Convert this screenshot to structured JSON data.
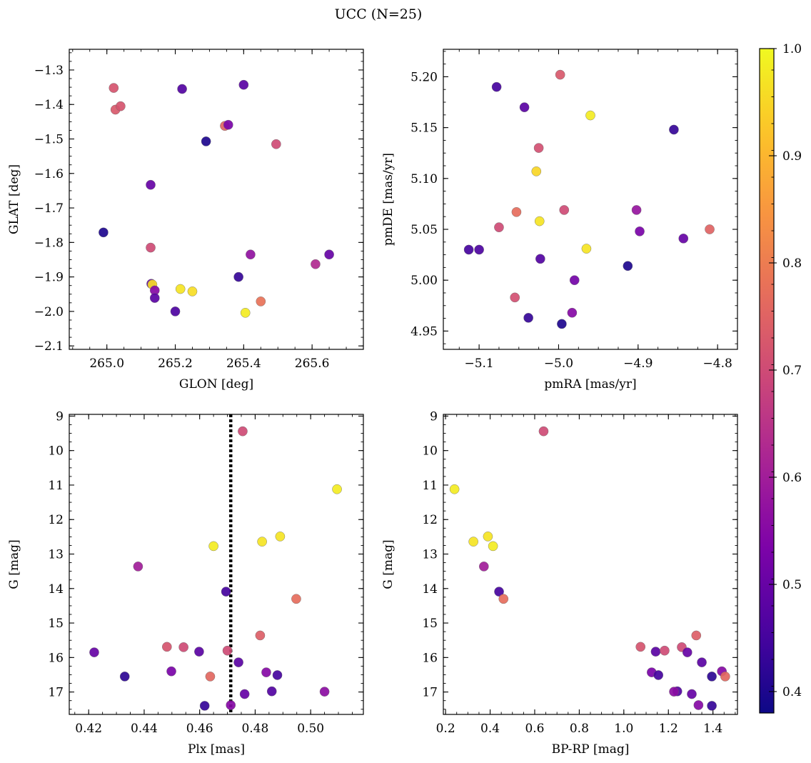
{
  "figure": {
    "title": "UCC (N=25)"
  },
  "colorbar": {
    "range": [
      0.38,
      1.0
    ],
    "ticks": [
      0.4,
      0.5,
      0.6,
      0.7,
      0.8,
      0.9,
      1.0
    ],
    "tick_labels": [
      "0.4",
      "0.5",
      "0.6",
      "0.7",
      "0.8",
      "0.9",
      "1.0"
    ],
    "colormap": "plasma"
  },
  "chart_data": [
    {
      "type": "scatter",
      "xlabel": "GLON [deg]",
      "ylabel": "GLAT [deg]",
      "xlim": [
        264.89,
        265.75
      ],
      "ylim": [
        -2.11,
        -1.24
      ],
      "xticks": [
        265.0,
        265.2,
        265.4,
        265.6
      ],
      "xtick_labels": [
        "265.0",
        "265.2",
        "265.4",
        "265.6"
      ],
      "yticks": [
        -1.3,
        -1.4,
        -1.5,
        -1.6,
        -1.7,
        -1.8,
        -1.9,
        -2.0,
        -2.1
      ],
      "ytick_labels": [
        "−1.3",
        "−1.4",
        "−1.5",
        "−1.6",
        "−1.7",
        "−1.8",
        "−1.9",
        "−2.0",
        "−2.1"
      ],
      "points": [
        {
          "x": 265.405,
          "y": -2.004,
          "c": 0.98
        },
        {
          "x": 264.99,
          "y": -1.771,
          "c": 0.4
        },
        {
          "x": 265.02,
          "y": -1.352,
          "c": 0.72
        },
        {
          "x": 265.025,
          "y": -1.415,
          "c": 0.73
        },
        {
          "x": 265.04,
          "y": -1.405,
          "c": 0.72
        },
        {
          "x": 265.22,
          "y": -1.355,
          "c": 0.47
        },
        {
          "x": 265.4,
          "y": -1.343,
          "c": 0.48
        },
        {
          "x": 265.345,
          "y": -1.462,
          "c": 0.75
        },
        {
          "x": 265.355,
          "y": -1.459,
          "c": 0.53
        },
        {
          "x": 265.495,
          "y": -1.515,
          "c": 0.7
        },
        {
          "x": 265.29,
          "y": -1.507,
          "c": 0.4
        },
        {
          "x": 265.128,
          "y": -1.633,
          "c": 0.5
        },
        {
          "x": 265.128,
          "y": -1.815,
          "c": 0.7
        },
        {
          "x": 265.42,
          "y": -1.835,
          "c": 0.57
        },
        {
          "x": 265.65,
          "y": -1.835,
          "c": 0.5
        },
        {
          "x": 265.61,
          "y": -1.863,
          "c": 0.63
        },
        {
          "x": 265.385,
          "y": -1.9,
          "c": 0.43
        },
        {
          "x": 265.13,
          "y": -1.92,
          "c": 0.5
        },
        {
          "x": 265.133,
          "y": -1.922,
          "c": 0.96
        },
        {
          "x": 265.14,
          "y": -1.939,
          "c": 0.55
        },
        {
          "x": 265.14,
          "y": -1.961,
          "c": 0.48
        },
        {
          "x": 265.215,
          "y": -1.935,
          "c": 0.97
        },
        {
          "x": 265.25,
          "y": -1.942,
          "c": 0.96
        },
        {
          "x": 265.2,
          "y": -2.0,
          "c": 0.46
        },
        {
          "x": 265.45,
          "y": -1.971,
          "c": 0.78
        }
      ]
    },
    {
      "type": "scatter",
      "xlabel": "pmRA [mas/yr]",
      "ylabel": "pmDE [mas/yr]",
      "xlim": [
        -5.145,
        -4.775
      ],
      "ylim": [
        4.932,
        5.227
      ],
      "xticks": [
        -5.1,
        -5.0,
        -4.9,
        -4.8
      ],
      "xtick_labels": [
        "−5.1",
        "−5.0",
        "−4.9",
        "−4.8"
      ],
      "yticks": [
        4.95,
        5.0,
        5.05,
        5.1,
        5.15,
        5.2
      ],
      "ytick_labels": [
        "4.95",
        "5.00",
        "5.05",
        "5.10",
        "5.15",
        "5.20"
      ],
      "points": [
        {
          "x": -4.998,
          "y": 5.202,
          "c": 0.73
        },
        {
          "x": -5.078,
          "y": 5.19,
          "c": 0.45
        },
        {
          "x": -5.043,
          "y": 5.17,
          "c": 0.48
        },
        {
          "x": -4.96,
          "y": 5.162,
          "c": 0.98
        },
        {
          "x": -4.855,
          "y": 5.148,
          "c": 0.43
        },
        {
          "x": -5.025,
          "y": 5.13,
          "c": 0.71
        },
        {
          "x": -5.028,
          "y": 5.107,
          "c": 0.95
        },
        {
          "x": -4.993,
          "y": 5.069,
          "c": 0.7
        },
        {
          "x": -4.902,
          "y": 5.069,
          "c": 0.58
        },
        {
          "x": -5.053,
          "y": 5.067,
          "c": 0.77
        },
        {
          "x": -5.024,
          "y": 5.058,
          "c": 0.97
        },
        {
          "x": -5.075,
          "y": 5.052,
          "c": 0.7
        },
        {
          "x": -4.81,
          "y": 5.05,
          "c": 0.75
        },
        {
          "x": -4.898,
          "y": 5.048,
          "c": 0.53
        },
        {
          "x": -4.843,
          "y": 5.041,
          "c": 0.5
        },
        {
          "x": -4.965,
          "y": 5.031,
          "c": 0.97
        },
        {
          "x": -5.113,
          "y": 5.03,
          "c": 0.45
        },
        {
          "x": -5.1,
          "y": 5.03,
          "c": 0.46
        },
        {
          "x": -5.023,
          "y": 5.021,
          "c": 0.47
        },
        {
          "x": -4.913,
          "y": 5.014,
          "c": 0.4
        },
        {
          "x": -4.98,
          "y": 5.0,
          "c": 0.52
        },
        {
          "x": -5.055,
          "y": 4.983,
          "c": 0.71
        },
        {
          "x": -4.983,
          "y": 4.968,
          "c": 0.55
        },
        {
          "x": -5.038,
          "y": 4.963,
          "c": 0.43
        },
        {
          "x": -4.996,
          "y": 4.957,
          "c": 0.4
        }
      ]
    },
    {
      "type": "scatter",
      "xlabel": "Plx [mas]",
      "ylabel": "G [mag]",
      "xlim": [
        0.413,
        0.519
      ],
      "ylim": [
        17.65,
        8.95
      ],
      "xticks": [
        0.42,
        0.44,
        0.46,
        0.48,
        0.5
      ],
      "xtick_labels": [
        "0.42",
        "0.44",
        "0.46",
        "0.48",
        "0.50"
      ],
      "yticks": [
        9,
        10,
        11,
        12,
        13,
        14,
        15,
        16,
        17
      ],
      "ytick_labels": [
        "9",
        "10",
        "11",
        "12",
        "13",
        "14",
        "15",
        "16",
        "17"
      ],
      "vline": 0.4712,
      "points": [
        {
          "x": 0.4755,
          "y": 9.44,
          "c": 0.7
        },
        {
          "x": 0.5095,
          "y": 11.12,
          "c": 0.98
        },
        {
          "x": 0.489,
          "y": 12.49,
          "c": 0.97
        },
        {
          "x": 0.4825,
          "y": 12.64,
          "c": 0.97
        },
        {
          "x": 0.465,
          "y": 12.77,
          "c": 0.98
        },
        {
          "x": 0.4378,
          "y": 13.36,
          "c": 0.6
        },
        {
          "x": 0.4695,
          "y": 14.09,
          "c": 0.45
        },
        {
          "x": 0.4948,
          "y": 14.3,
          "c": 0.77
        },
        {
          "x": 0.4818,
          "y": 15.36,
          "c": 0.74
        },
        {
          "x": 0.4482,
          "y": 15.69,
          "c": 0.72
        },
        {
          "x": 0.4542,
          "y": 15.7,
          "c": 0.7
        },
        {
          "x": 0.4598,
          "y": 15.83,
          "c": 0.48
        },
        {
          "x": 0.47,
          "y": 15.8,
          "c": 0.7
        },
        {
          "x": 0.422,
          "y": 15.85,
          "c": 0.5
        },
        {
          "x": 0.474,
          "y": 16.14,
          "c": 0.48
        },
        {
          "x": 0.4498,
          "y": 16.4,
          "c": 0.53
        },
        {
          "x": 0.484,
          "y": 16.43,
          "c": 0.55
        },
        {
          "x": 0.488,
          "y": 16.51,
          "c": 0.45
        },
        {
          "x": 0.433,
          "y": 16.55,
          "c": 0.42
        },
        {
          "x": 0.4638,
          "y": 16.55,
          "c": 0.76
        },
        {
          "x": 0.486,
          "y": 16.98,
          "c": 0.47
        },
        {
          "x": 0.505,
          "y": 16.99,
          "c": 0.56
        },
        {
          "x": 0.4762,
          "y": 17.06,
          "c": 0.5
        },
        {
          "x": 0.4618,
          "y": 17.4,
          "c": 0.43
        },
        {
          "x": 0.4712,
          "y": 17.38,
          "c": 0.55
        }
      ]
    },
    {
      "type": "scatter",
      "xlabel": "BP-RP [mag]",
      "ylabel": "G [mag]",
      "xlim": [
        0.19,
        1.51
      ],
      "ylim": [
        17.65,
        8.95
      ],
      "xticks": [
        0.2,
        0.4,
        0.6,
        0.8,
        1.0,
        1.2,
        1.4
      ],
      "xtick_labels": [
        "0.2",
        "0.4",
        "0.6",
        "0.8",
        "1.0",
        "1.2",
        "1.4"
      ],
      "yticks": [
        9,
        10,
        11,
        12,
        13,
        14,
        15,
        16,
        17
      ],
      "ytick_labels": [
        "9",
        "10",
        "11",
        "12",
        "13",
        "14",
        "15",
        "16",
        "17"
      ],
      "points": [
        {
          "x": 0.64,
          "y": 9.44,
          "c": 0.7
        },
        {
          "x": 0.24,
          "y": 11.12,
          "c": 0.98
        },
        {
          "x": 0.39,
          "y": 12.49,
          "c": 0.97
        },
        {
          "x": 0.325,
          "y": 12.64,
          "c": 0.97
        },
        {
          "x": 0.413,
          "y": 12.77,
          "c": 0.98
        },
        {
          "x": 0.372,
          "y": 13.36,
          "c": 0.6
        },
        {
          "x": 0.44,
          "y": 14.09,
          "c": 0.45
        },
        {
          "x": 0.46,
          "y": 14.3,
          "c": 0.77
        },
        {
          "x": 1.325,
          "y": 15.36,
          "c": 0.74
        },
        {
          "x": 1.075,
          "y": 15.69,
          "c": 0.72
        },
        {
          "x": 1.26,
          "y": 15.7,
          "c": 0.7
        },
        {
          "x": 1.143,
          "y": 15.83,
          "c": 0.48
        },
        {
          "x": 1.183,
          "y": 15.8,
          "c": 0.7
        },
        {
          "x": 1.285,
          "y": 15.85,
          "c": 0.5
        },
        {
          "x": 1.35,
          "y": 16.14,
          "c": 0.48
        },
        {
          "x": 1.125,
          "y": 16.43,
          "c": 0.53
        },
        {
          "x": 1.44,
          "y": 16.4,
          "c": 0.55
        },
        {
          "x": 1.155,
          "y": 16.51,
          "c": 0.45
        },
        {
          "x": 1.395,
          "y": 16.55,
          "c": 0.42
        },
        {
          "x": 1.455,
          "y": 16.55,
          "c": 0.76
        },
        {
          "x": 1.24,
          "y": 16.98,
          "c": 0.47
        },
        {
          "x": 1.225,
          "y": 16.99,
          "c": 0.56
        },
        {
          "x": 1.305,
          "y": 17.06,
          "c": 0.5
        },
        {
          "x": 1.395,
          "y": 17.4,
          "c": 0.43
        },
        {
          "x": 1.335,
          "y": 17.38,
          "c": 0.55
        }
      ]
    }
  ]
}
